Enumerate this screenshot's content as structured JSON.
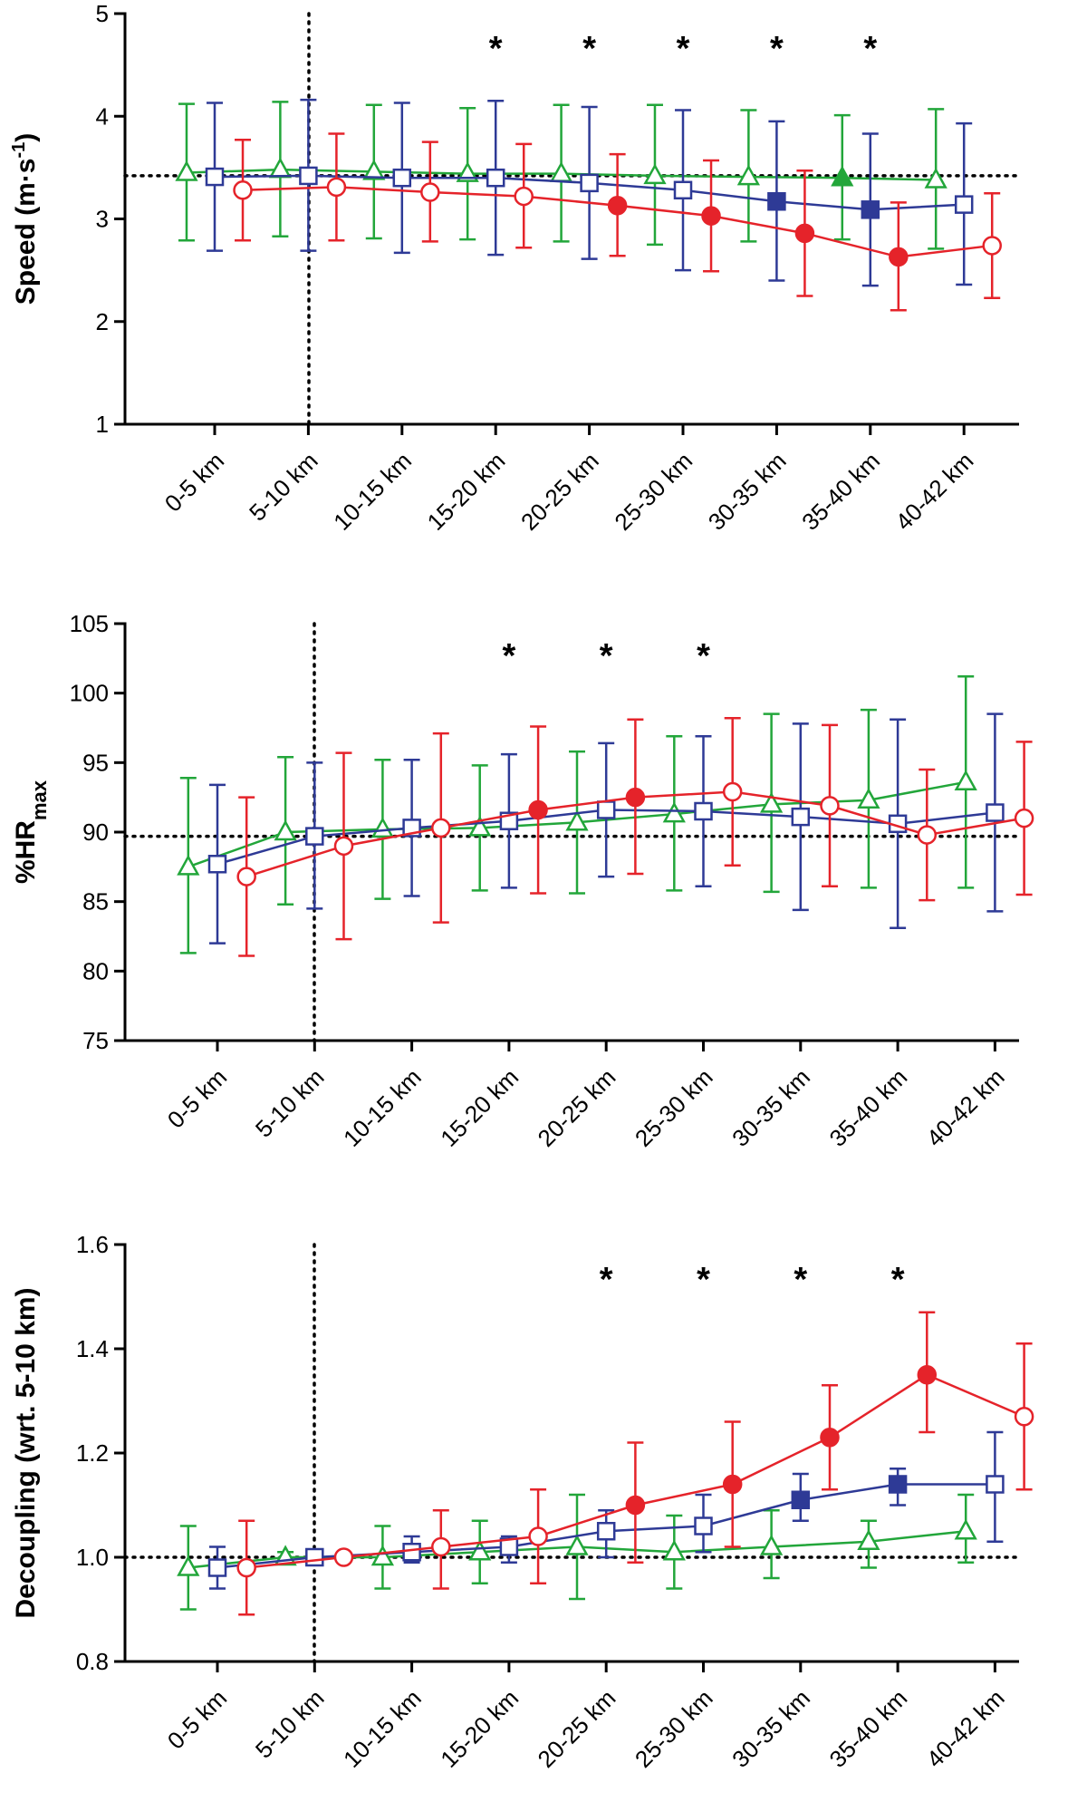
{
  "chart_data": [
    {
      "type": "line",
      "ylabel": "Speed (m·s⁻¹)",
      "ylabel_main": "Speed (m·s",
      "ylabel_sup": "-1",
      "ylabel_tail": ")",
      "ylim": [
        1,
        5
      ],
      "yticks": [
        1,
        2,
        3,
        4,
        5
      ],
      "categories": [
        "0-5 km",
        "5-10 km",
        "10-15 km",
        "15-20 km",
        "20-25 km",
        "25-30 km",
        "30-35 km",
        "35-40 km",
        "40-42 km"
      ],
      "reference_y": 3.42,
      "significance_categories": [
        "15-20 km",
        "20-25 km",
        "25-30 km",
        "30-35 km",
        "35-40 km"
      ],
      "significance_marker": "*",
      "series": [
        {
          "color": "#22a63a",
          "marker": "triangle",
          "offset": -0.3,
          "values": [
            3.45,
            3.48,
            3.46,
            3.44,
            3.44,
            3.42,
            3.41,
            3.4,
            3.38
          ],
          "err_low": [
            2.79,
            2.83,
            2.81,
            2.8,
            2.78,
            2.75,
            2.78,
            2.8,
            2.71
          ],
          "err_high": [
            4.12,
            4.14,
            4.11,
            4.08,
            4.11,
            4.11,
            4.06,
            4.01,
            4.07
          ],
          "filled": [
            false,
            false,
            false,
            false,
            false,
            false,
            false,
            true,
            false
          ]
        },
        {
          "color": "#2e3a96",
          "marker": "square",
          "offset": 0,
          "values": [
            3.41,
            3.42,
            3.4,
            3.4,
            3.35,
            3.28,
            3.17,
            3.09,
            3.14
          ],
          "err_low": [
            2.69,
            2.69,
            2.67,
            2.65,
            2.61,
            2.5,
            2.4,
            2.35,
            2.36
          ],
          "err_high": [
            4.13,
            4.16,
            4.13,
            4.15,
            4.09,
            4.06,
            3.95,
            3.83,
            3.93
          ],
          "filled": [
            false,
            false,
            false,
            false,
            false,
            false,
            true,
            true,
            false
          ]
        },
        {
          "color": "#e5232a",
          "marker": "circle",
          "offset": 0.3,
          "values": [
            3.28,
            3.31,
            3.26,
            3.22,
            3.13,
            3.03,
            2.86,
            2.63,
            2.74
          ],
          "err_low": [
            2.79,
            2.79,
            2.78,
            2.72,
            2.64,
            2.49,
            2.25,
            2.11,
            2.23
          ],
          "err_high": [
            3.77,
            3.83,
            3.75,
            3.73,
            3.63,
            3.57,
            3.47,
            3.16,
            3.25
          ],
          "filled": [
            false,
            false,
            false,
            false,
            true,
            true,
            true,
            true,
            false
          ]
        }
      ]
    },
    {
      "type": "line",
      "ylabel": "%HRmax",
      "ylabel_main": "%HR",
      "ylabel_sub": "max",
      "ylim": [
        75,
        105
      ],
      "yticks": [
        75,
        80,
        85,
        90,
        95,
        100,
        105
      ],
      "categories": [
        "0-5 km",
        "5-10 km",
        "10-15 km",
        "15-20 km",
        "20-25 km",
        "25-30 km",
        "30-35 km",
        "35-40 km",
        "40-42 km"
      ],
      "reference_y": 89.7,
      "significance_categories": [
        "15-20 km",
        "20-25 km",
        "25-30 km"
      ],
      "significance_marker": "*",
      "series": [
        {
          "color": "#22a63a",
          "marker": "triangle",
          "offset": -0.3,
          "values": [
            87.5,
            90.0,
            90.2,
            90.3,
            90.7,
            91.3,
            92.0,
            92.3,
            93.6
          ],
          "err_low": [
            81.3,
            84.8,
            85.2,
            85.8,
            85.6,
            85.8,
            85.7,
            86.0,
            86.0
          ],
          "err_high": [
            93.9,
            95.4,
            95.2,
            94.8,
            95.8,
            96.9,
            98.5,
            98.8,
            101.2
          ],
          "filled": [
            false,
            false,
            false,
            false,
            false,
            false,
            false,
            false,
            false
          ]
        },
        {
          "color": "#2e3a96",
          "marker": "square",
          "offset": 0,
          "values": [
            87.7,
            89.7,
            90.3,
            90.8,
            91.6,
            91.5,
            91.1,
            90.6,
            91.4
          ],
          "err_low": [
            82.0,
            84.5,
            85.4,
            86.0,
            86.8,
            86.1,
            84.4,
            83.1,
            84.3
          ],
          "err_high": [
            93.4,
            95.0,
            95.2,
            95.6,
            96.4,
            96.9,
            97.8,
            98.1,
            98.5
          ],
          "filled": [
            false,
            false,
            false,
            false,
            false,
            false,
            false,
            false,
            false
          ]
        },
        {
          "color": "#e5232a",
          "marker": "circle",
          "offset": 0.3,
          "values": [
            86.8,
            89.0,
            90.3,
            91.6,
            92.5,
            92.9,
            91.9,
            89.8,
            91.0
          ],
          "err_low": [
            81.1,
            82.3,
            83.5,
            85.6,
            87.0,
            87.6,
            86.1,
            85.1,
            85.5
          ],
          "err_high": [
            92.5,
            95.7,
            97.1,
            97.6,
            98.1,
            98.2,
            97.7,
            94.5,
            96.5
          ],
          "filled": [
            false,
            false,
            false,
            true,
            true,
            false,
            false,
            false,
            false
          ]
        }
      ]
    },
    {
      "type": "line",
      "ylabel": "Decoupling (wrt. 5-10 km)",
      "ylim": [
        0.8,
        1.6
      ],
      "yticks": [
        "0.8",
        "1.0",
        "1.2",
        "1.4",
        "1.6"
      ],
      "categories": [
        "0-5 km",
        "5-10 km",
        "10-15 km",
        "15-20 km",
        "20-25 km",
        "25-30 km",
        "30-35 km",
        "35-40 km",
        "40-42 km"
      ],
      "reference_y": 1.0,
      "significance_categories": [
        "20-25 km",
        "25-30 km",
        "30-35 km",
        "35-40 km"
      ],
      "significance_marker": "*",
      "series": [
        {
          "color": "#22a63a",
          "marker": "triangle",
          "offset": -0.3,
          "values": [
            0.98,
            1.0,
            1.0,
            1.01,
            1.02,
            1.01,
            1.02,
            1.03,
            1.05
          ],
          "err_low": [
            0.9,
            0.99,
            0.94,
            0.95,
            0.92,
            0.94,
            0.96,
            0.98,
            0.99
          ],
          "err_high": [
            1.06,
            1.01,
            1.06,
            1.07,
            1.12,
            1.08,
            1.09,
            1.07,
            1.12
          ],
          "filled": [
            false,
            false,
            false,
            false,
            false,
            false,
            false,
            false,
            false
          ]
        },
        {
          "color": "#2e3a96",
          "marker": "square",
          "offset": 0,
          "values": [
            0.98,
            1.0,
            1.01,
            1.02,
            1.05,
            1.06,
            1.11,
            1.14,
            1.14
          ],
          "err_low": [
            0.94,
            1.0,
            0.99,
            0.99,
            1.0,
            1.01,
            1.07,
            1.1,
            1.03
          ],
          "err_high": [
            1.02,
            1.0,
            1.04,
            1.04,
            1.09,
            1.12,
            1.16,
            1.17,
            1.24
          ],
          "filled": [
            false,
            false,
            false,
            false,
            false,
            false,
            true,
            true,
            false
          ]
        },
        {
          "color": "#e5232a",
          "marker": "circle",
          "offset": 0.3,
          "values": [
            0.98,
            1.0,
            1.02,
            1.04,
            1.1,
            1.14,
            1.23,
            1.35,
            1.27
          ],
          "err_low": [
            0.89,
            1.0,
            0.94,
            0.95,
            0.99,
            1.02,
            1.13,
            1.24,
            1.13
          ],
          "err_high": [
            1.07,
            1.0,
            1.09,
            1.13,
            1.22,
            1.26,
            1.33,
            1.47,
            1.41
          ],
          "filled": [
            false,
            false,
            false,
            false,
            true,
            true,
            true,
            true,
            false
          ]
        }
      ]
    }
  ]
}
